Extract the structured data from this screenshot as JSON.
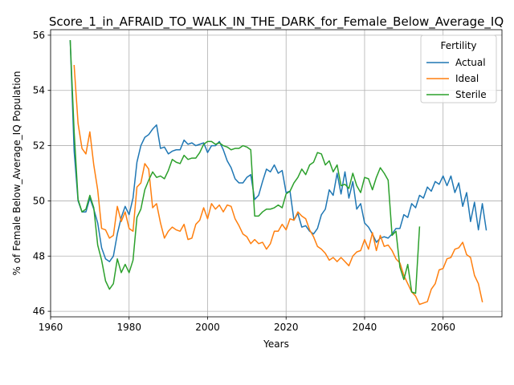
{
  "chart_data": {
    "type": "line",
    "title": "Score_1_in_AFRAID_TO_WALK_IN_THE_DARK_for_Female_Below_Average_IQ",
    "xlabel": "Years",
    "ylabel": "% of Female Below_Average_IQ Population",
    "xlim": [
      1960,
      2075
    ],
    "ylim": [
      45.8,
      56.2
    ],
    "xticks": [
      1960,
      1980,
      2000,
      2020,
      2040,
      2060
    ],
    "yticks": [
      46,
      48,
      50,
      52,
      54,
      56
    ],
    "grid": true,
    "legend": {
      "title": "Fertility",
      "position": "top-right"
    },
    "series": [
      {
        "name": "Actual",
        "color": "#1f77b4",
        "x_start": 1965,
        "values": [
          55.8,
          51.8,
          50.0,
          49.6,
          49.6,
          50.1,
          49.7,
          49.2,
          48.3,
          47.9,
          47.8,
          48.0,
          48.8,
          49.4,
          49.8,
          49.5,
          50.1,
          51.4,
          52.0,
          52.3,
          52.4,
          52.6,
          52.75,
          51.9,
          51.95,
          51.7,
          51.8,
          51.85,
          51.85,
          52.2,
          52.05,
          52.1,
          52.0,
          52.05,
          52.1,
          51.75,
          52.0,
          52.0,
          52.15,
          51.85,
          51.45,
          51.2,
          50.8,
          50.65,
          50.65,
          50.85,
          50.95,
          50.05,
          50.2,
          50.7,
          51.15,
          51.05,
          51.3,
          51.0,
          51.1,
          50.3,
          50.35,
          49.3,
          49.55,
          49.05,
          49.1,
          48.9,
          48.8,
          49.0,
          49.5,
          49.7,
          50.4,
          50.2,
          51.0,
          50.25,
          51.05,
          50.1,
          50.7,
          49.7,
          49.9,
          49.2,
          49.05,
          48.8,
          48.5,
          48.65,
          48.7,
          48.65,
          48.8,
          49.0,
          49.0,
          49.5,
          49.4,
          49.9,
          49.75,
          50.2,
          50.1,
          50.5,
          50.35,
          50.7,
          50.6,
          50.9,
          50.55,
          50.9,
          50.3,
          50.65,
          49.8,
          50.3,
          49.25,
          49.95,
          48.95,
          49.9,
          48.95
        ]
      },
      {
        "name": "Ideal",
        "color": "#ff7f0e",
        "x_start": 1966,
        "values": [
          54.9,
          52.8,
          51.9,
          51.7,
          52.5,
          51.3,
          50.4,
          49.0,
          48.95,
          48.65,
          48.75,
          49.8,
          49.25,
          49.6,
          49.0,
          48.9,
          50.5,
          50.65,
          51.35,
          51.15,
          49.75,
          49.9,
          49.2,
          48.65,
          48.9,
          49.05,
          48.95,
          48.9,
          49.15,
          48.6,
          48.65,
          49.15,
          49.3,
          49.75,
          49.35,
          49.9,
          49.7,
          49.85,
          49.6,
          49.85,
          49.8,
          49.35,
          49.1,
          48.8,
          48.7,
          48.45,
          48.6,
          48.45,
          48.5,
          48.25,
          48.45,
          48.9,
          48.9,
          49.15,
          48.95,
          49.35,
          49.3,
          49.6,
          49.45,
          49.35,
          48.95,
          48.7,
          48.35,
          48.25,
          48.1,
          47.85,
          47.95,
          47.8,
          47.95,
          47.8,
          47.65,
          48.0,
          48.15,
          48.2,
          48.6,
          48.25,
          48.85,
          48.2,
          48.75,
          48.35,
          48.4,
          48.2,
          47.9,
          47.75,
          47.3,
          47.0,
          46.7,
          46.55,
          46.25,
          46.3,
          46.35,
          46.8,
          47.0,
          47.5,
          47.55,
          47.9,
          47.95,
          48.25,
          48.3,
          48.5,
          48.05,
          47.95,
          47.3,
          47.0,
          46.35
        ]
      },
      {
        "name": "Sterile",
        "color": "#2ca02c",
        "x_start": 1965,
        "values": [
          55.8,
          52.5,
          50.05,
          49.6,
          49.7,
          50.2,
          49.75,
          48.4,
          47.85,
          47.1,
          46.8,
          47.0,
          47.9,
          47.4,
          47.7,
          47.4,
          47.85,
          49.4,
          49.7,
          50.4,
          50.75,
          51.05,
          50.85,
          50.9,
          50.8,
          51.1,
          51.5,
          51.4,
          51.35,
          51.65,
          51.5,
          51.55,
          51.55,
          51.75,
          52.05,
          52.15,
          52.15,
          52.05,
          52.1,
          52.0,
          51.95,
          51.85,
          51.9,
          51.9,
          52.0,
          51.95,
          51.85,
          49.45,
          49.45,
          49.6,
          49.7,
          49.7,
          49.75,
          49.85,
          49.75,
          50.25,
          50.35,
          50.65,
          50.85,
          51.15,
          50.95,
          51.3,
          51.4,
          51.75,
          51.7,
          51.3,
          51.45,
          51.05,
          51.3,
          50.55,
          50.6,
          50.45,
          51.0,
          50.55,
          50.3,
          50.85,
          50.8,
          50.4,
          50.85,
          51.2,
          51.0,
          50.75,
          48.75,
          48.9,
          47.6,
          47.15,
          47.7,
          46.7,
          46.65,
          49.05
        ]
      }
    ]
  }
}
